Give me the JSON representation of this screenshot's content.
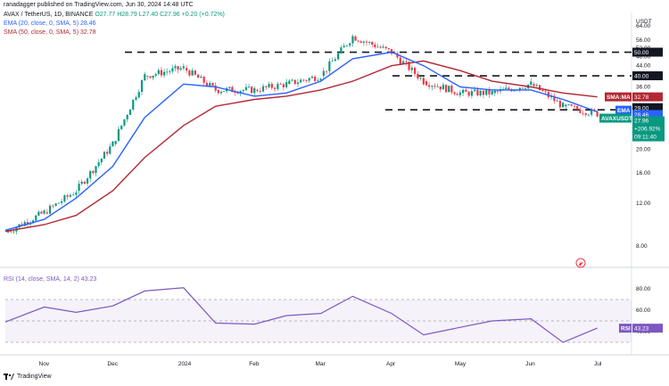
{
  "header": {
    "author": "ranadagger published on TradingView.com, Jun 30, 2024 14:48 UTC",
    "symbol_line": "AVAX / TetherUS, 1D, BINANCE",
    "ohlc": "O27.77 H28.79 L27.40 C27.96 +0.20 (+0.72%)"
  },
  "indicators": {
    "ema": "EMA (20, close, 0, SMA, 5) 28.46",
    "sma": "SMA (50, close, 0, SMA, 5) 32.78",
    "rsi": "RSI (14, close, SMA, 14, 2) 43.23",
    "rsi_value": "43.23"
  },
  "axis": {
    "currency": "USDT",
    "x_labels": [
      "Nov",
      "Dec",
      "2024",
      "Feb",
      "Mar",
      "Apr",
      "May",
      "Jun",
      "Jul"
    ],
    "y_ticks": [
      "64.00",
      "56.00",
      "52.00",
      "48.00",
      "44.00",
      "36.00",
      "32.00",
      "24.00",
      "20.00",
      "16.00",
      "12.00",
      "8.00"
    ],
    "rsi_ticks": [
      "80.00",
      "60.00",
      "40.00"
    ]
  },
  "price_tags": {
    "level_50": "50.00",
    "level_40": "40.00",
    "level_29": "29.00",
    "sma": "SMA:MA",
    "sma_val": "32.78",
    "ema": "EMA",
    "ema_val": "28.46",
    "sym": "AVAXUSDT",
    "last": "27.96",
    "chg": "+206.92%",
    "timer": "09:11:40",
    "rsi": "RSI"
  },
  "footer": {
    "brand": "TradingView"
  },
  "colors": {
    "up": "#089981",
    "down": "#f23645",
    "ema": "#2962ff",
    "sma": "#b22833",
    "rsi": "#7e57c2",
    "level": "#131722"
  },
  "chart_data": {
    "type": "line",
    "title": "AVAX / TetherUS, 1D, BINANCE",
    "y_scale": "log",
    "ylim": [
      7,
      68
    ],
    "x": [
      "2023-10-15",
      "2023-11-01",
      "2023-11-15",
      "2023-12-01",
      "2023-12-15",
      "2024-01-01",
      "2024-01-15",
      "2024-02-01",
      "2024-02-15",
      "2024-03-01",
      "2024-03-15",
      "2024-04-01",
      "2024-04-15",
      "2024-05-01",
      "2024-05-15",
      "2024-06-01",
      "2024-06-15",
      "2024-06-30"
    ],
    "series": [
      {
        "name": "AVAXUSDT",
        "values": [
          9.1,
          11,
          13.5,
          21,
          40,
          43,
          35,
          35,
          37,
          40,
          58,
          50,
          38,
          34,
          34,
          37,
          30,
          27.96
        ]
      },
      {
        "name": "EMA",
        "values": [
          9.3,
          10.3,
          12.6,
          17,
          27,
          37,
          36,
          33,
          34,
          38,
          47,
          50,
          44,
          36,
          35,
          35,
          32,
          28.46
        ]
      },
      {
        "name": "SMA:MA",
        "values": [
          9.2,
          9.8,
          10.7,
          13.5,
          18.5,
          25,
          30,
          32,
          33,
          35,
          38,
          44,
          46,
          42,
          38,
          36,
          34,
          32.78
        ]
      }
    ],
    "levels": [
      50,
      40,
      29
    ],
    "rsi": {
      "name": "RSI",
      "ylim": [
        20,
        95
      ],
      "values": [
        49,
        63,
        58,
        64,
        78,
        81,
        48,
        47,
        55,
        57,
        73,
        57,
        37,
        44,
        50,
        52,
        30,
        43.23
      ]
    }
  }
}
